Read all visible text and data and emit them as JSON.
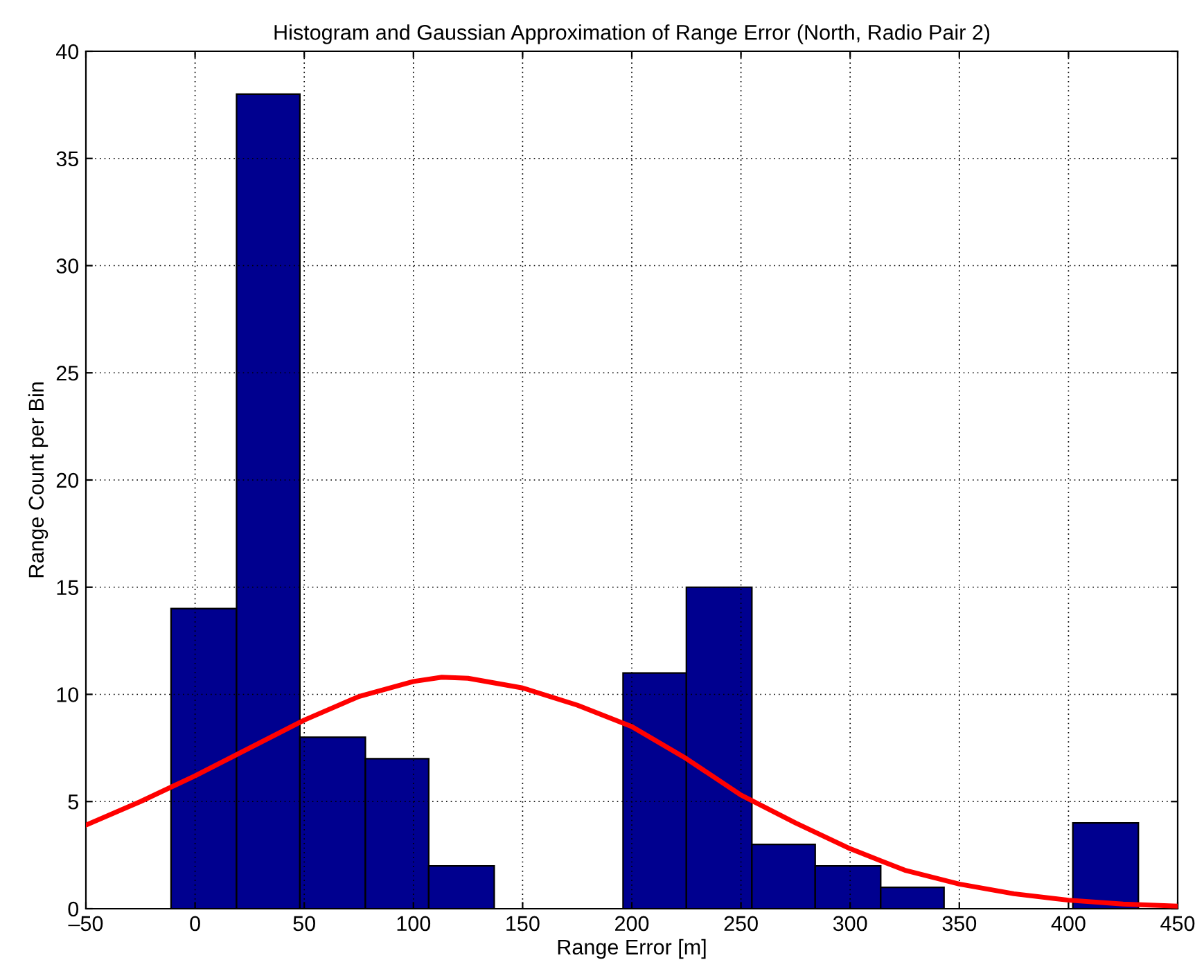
{
  "chart_data": {
    "type": "histogram",
    "title": "Histogram and Gaussian Approximation of Range Error (North, Radio Pair 2)",
    "xlabel": "Range Error [m]",
    "ylabel": "Range Count per Bin",
    "bins": [
      -11,
      19,
      48,
      78,
      107,
      137,
      166,
      196,
      225,
      255,
      284,
      314,
      343,
      373,
      402,
      432
    ],
    "values": [
      14,
      38,
      8,
      7,
      2,
      0,
      0,
      11,
      15,
      3,
      2,
      1,
      0,
      0,
      4
    ],
    "color": "#00008f",
    "series": [
      {
        "type": "line",
        "color": "#ff0000",
        "x": [
          -50,
          -25,
          0,
          25,
          50,
          75,
          100,
          113,
          125,
          150,
          175,
          200,
          225,
          250,
          275,
          300,
          325,
          350,
          375,
          400,
          425,
          450
        ],
        "values": [
          3.9,
          5.0,
          6.2,
          7.5,
          8.8,
          9.9,
          10.6,
          10.8,
          10.75,
          10.3,
          9.5,
          8.5,
          7.0,
          5.3,
          4.0,
          2.8,
          1.8,
          1.15,
          0.7,
          0.4,
          0.22,
          0.12
        ]
      }
    ],
    "xlim": [
      -50,
      450
    ],
    "xticks": [
      {
        "value": -50,
        "label": "–50"
      },
      0,
      50,
      100,
      150,
      200,
      250,
      300,
      350,
      400,
      450
    ],
    "ylim": [
      0,
      40
    ],
    "yticks": [
      0,
      5,
      10,
      15,
      20,
      25,
      30,
      35,
      40
    ],
    "grid": true,
    "line_style": "solid",
    "marker": "none"
  }
}
